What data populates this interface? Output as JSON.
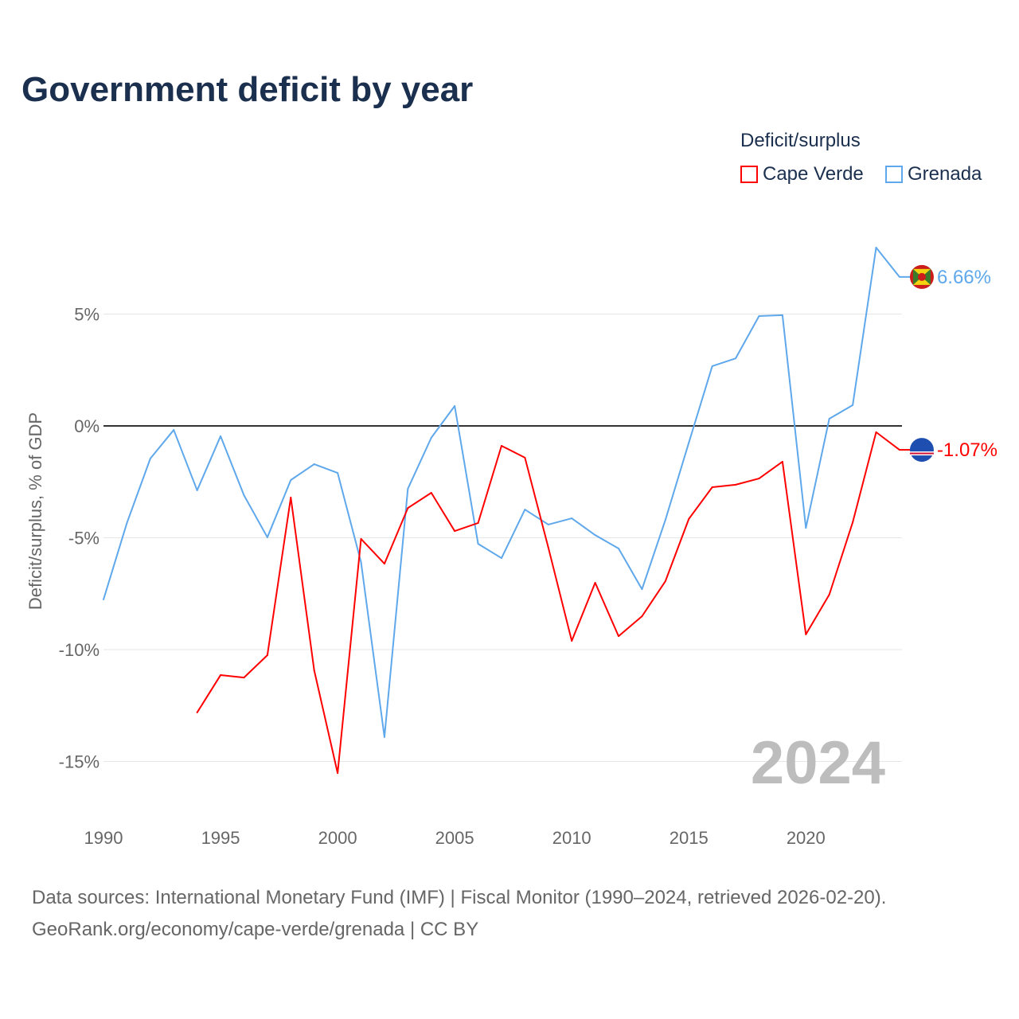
{
  "title": "Government deficit by year",
  "legend": {
    "title": "Deficit/surplus",
    "items": [
      {
        "label": "Cape Verde",
        "color": "#ff0000"
      },
      {
        "label": "Grenada",
        "color": "#5fa8ec"
      }
    ]
  },
  "footer": {
    "line1": "Data sources: International Monetary Fund (IMF) | Fiscal Monitor (1990–2024, retrieved 2026-02-20).",
    "line2": "GeoRank.org/economy/cape-verde/grenada | CC BY"
  },
  "chart_data": {
    "type": "line",
    "title": "Government deficit by year",
    "xlabel": "",
    "ylabel": "Deficit/surplus, % of GDP",
    "xlim": [
      1990,
      2024
    ],
    "ylim": [
      -17,
      9
    ],
    "x_ticks": [
      "1990",
      "1995",
      "2000",
      "2005",
      "2010",
      "2015",
      "2020"
    ],
    "y_ticks": [
      {
        "v": 5,
        "label": "5%"
      },
      {
        "v": 0,
        "label": "0%"
      },
      {
        "v": -5,
        "label": "-5%"
      },
      {
        "v": -10,
        "label": "-10%"
      },
      {
        "v": -15,
        "label": "-15%"
      }
    ],
    "watermark_year": "2024",
    "series": [
      {
        "name": "Grenada",
        "color": "#5fa8ec",
        "end_label": "6.66%",
        "start_year": 1990,
        "values": [
          -7.76,
          -4.34,
          -1.46,
          -0.18,
          -2.88,
          -0.46,
          -3.1,
          -4.98,
          -2.42,
          -1.71,
          -2.1,
          -6.09,
          -13.91,
          -2.81,
          -0.53,
          0.89,
          -5.27,
          -5.91,
          -3.74,
          -4.41,
          -4.13,
          -4.88,
          -5.48,
          -7.3,
          -4.2,
          -0.75,
          2.67,
          3.02,
          4.91,
          4.95,
          -4.56,
          0.32,
          0.93,
          7.97,
          6.66
        ]
      },
      {
        "name": "Cape Verde",
        "color": "#ff0000",
        "end_label": "-1.07%",
        "start_year": 1994,
        "values": [
          -12.81,
          -11.14,
          -11.25,
          -10.25,
          -3.2,
          -10.93,
          -15.52,
          -5.05,
          -6.16,
          -3.67,
          -2.99,
          -4.7,
          -4.34,
          -0.89,
          -1.42,
          -5.44,
          -9.61,
          -7.01,
          -9.4,
          -8.51,
          -6.94,
          -4.16,
          -2.74,
          -2.63,
          -2.35,
          -1.6,
          -9.32,
          -7.54,
          -4.31,
          -0.28,
          -1.07
        ]
      }
    ]
  }
}
